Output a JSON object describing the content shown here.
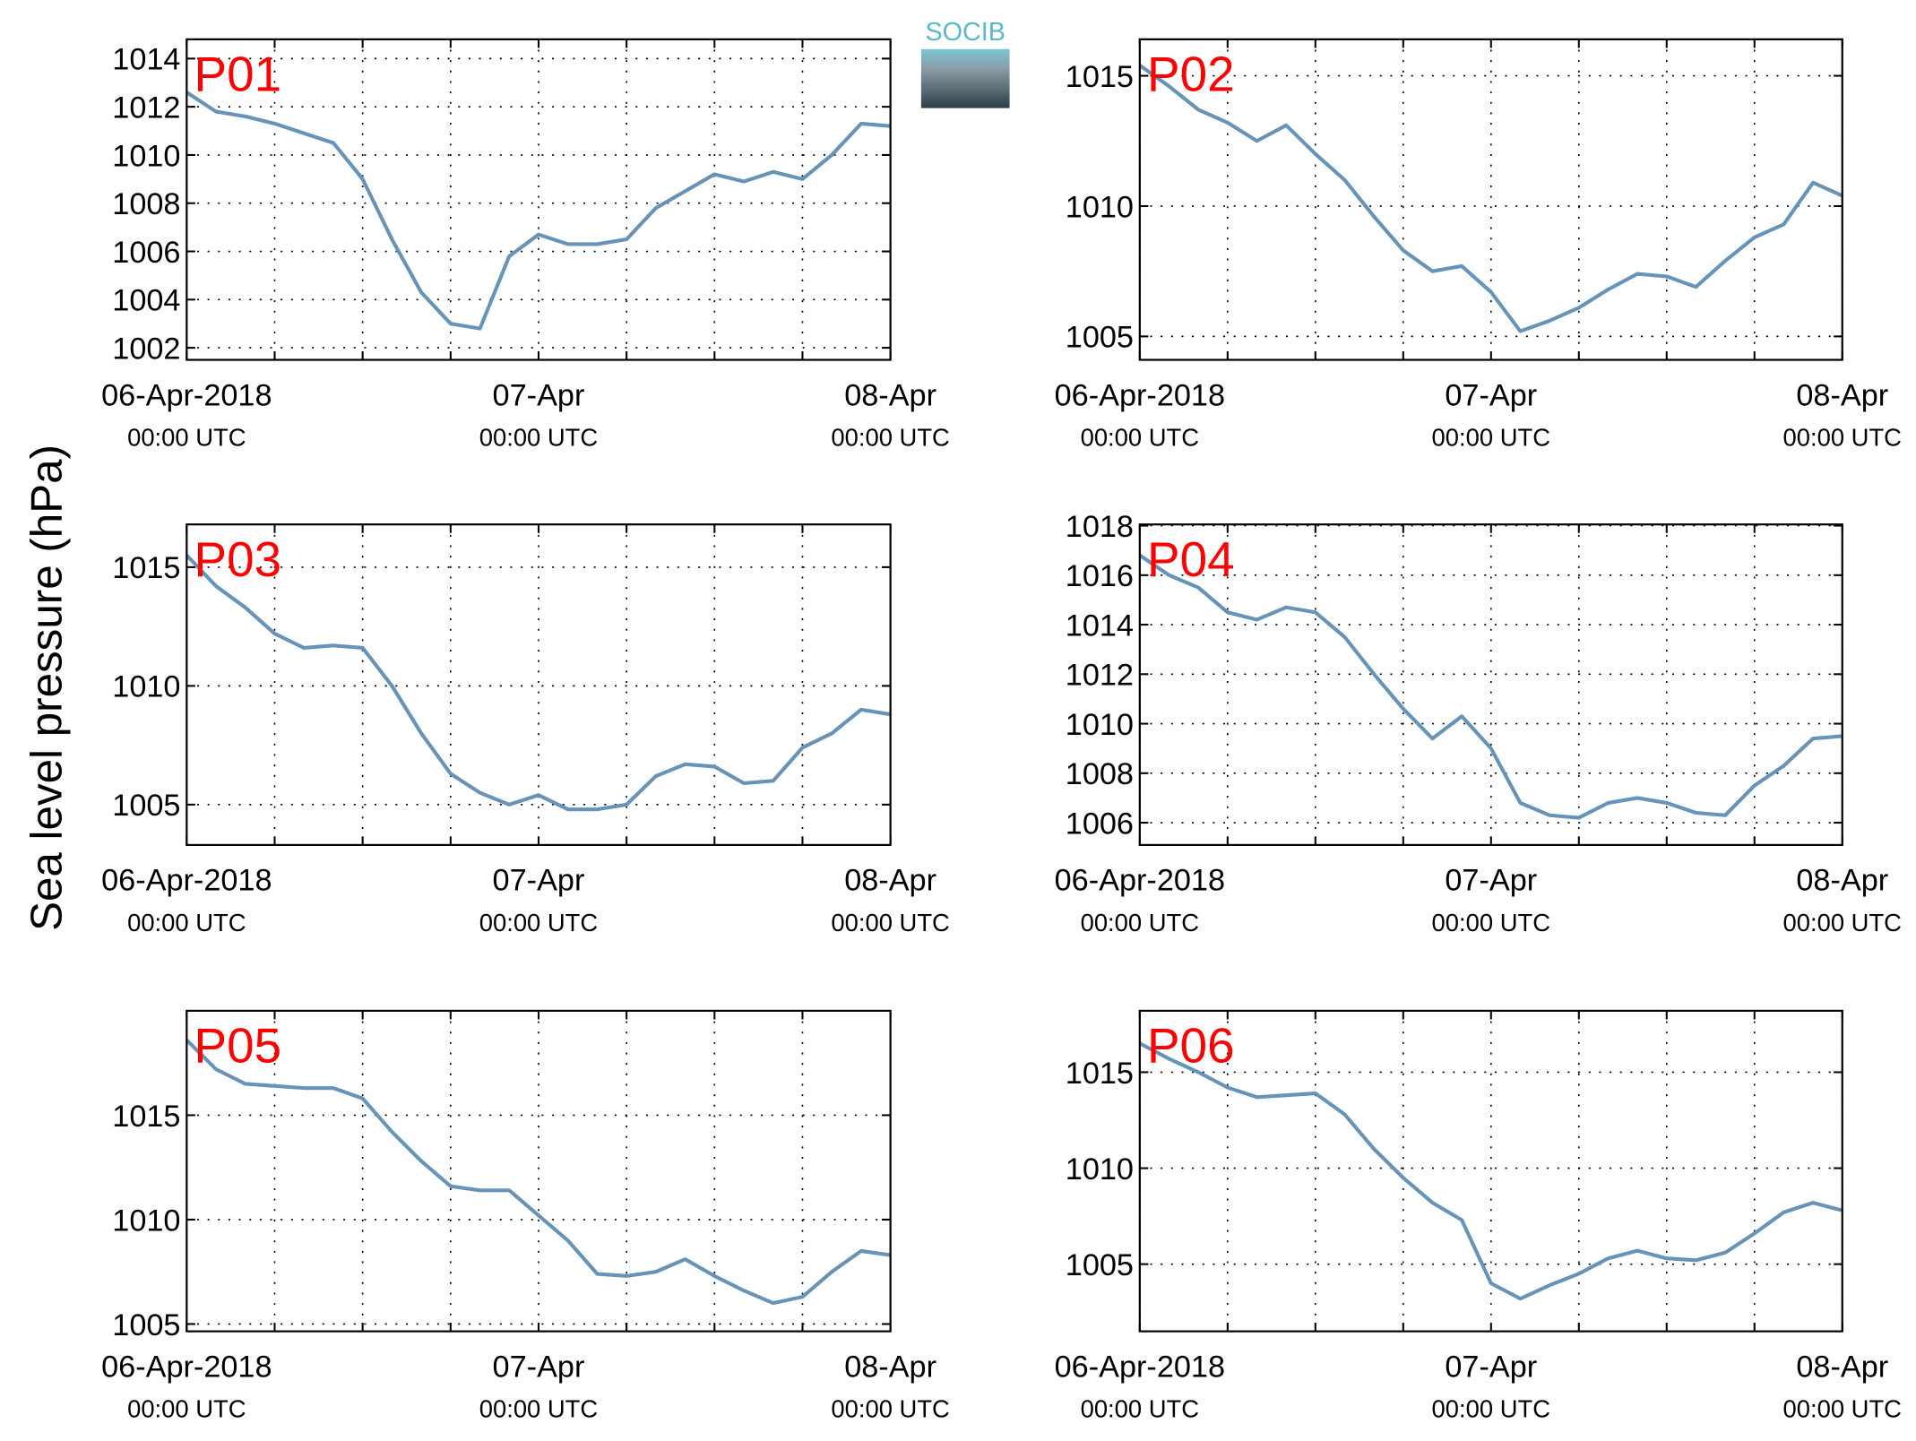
{
  "logo": "SOCIB",
  "ylabel": "Sea level pressure (hPa)",
  "chart_data": [
    {
      "type": "line",
      "label": "P01",
      "color": "#6693b8",
      "grid": true,
      "x": [
        0,
        2,
        4,
        6,
        8,
        10,
        12,
        14,
        16,
        18,
        20,
        22,
        24,
        26,
        28,
        30,
        32,
        34,
        36,
        38,
        40,
        42,
        44,
        46,
        48
      ],
      "values": [
        1012.6,
        1011.8,
        1011.6,
        1011.3,
        1010.9,
        1010.5,
        1009.0,
        1006.5,
        1004.3,
        1003.0,
        1002.8,
        1005.8,
        1006.7,
        1006.3,
        1006.3,
        1006.5,
        1007.8,
        1008.5,
        1009.2,
        1008.9,
        1009.3,
        1009.0,
        1010.0,
        1011.3,
        1011.2
      ],
      "xlim": [
        0,
        48
      ],
      "ylim": [
        1001.5,
        1014.8
      ],
      "yticks": [
        1002,
        1004,
        1006,
        1008,
        1010,
        1012,
        1014
      ],
      "xticks": [
        {
          "value": 0,
          "label": [
            "06-Apr-2018",
            "00:00 UTC"
          ]
        },
        {
          "value": 6,
          "label": null
        },
        {
          "value": 12,
          "label": null
        },
        {
          "value": 18,
          "label": null
        },
        {
          "value": 24,
          "label": [
            "07-Apr",
            "00:00 UTC"
          ]
        },
        {
          "value": 30,
          "label": null
        },
        {
          "value": 36,
          "label": null
        },
        {
          "value": 42,
          "label": null
        },
        {
          "value": 48,
          "label": [
            "08-Apr",
            "00:00 UTC"
          ]
        }
      ]
    },
    {
      "type": "line",
      "label": "P02",
      "color": "#6693b8",
      "grid": true,
      "x": [
        0,
        2,
        4,
        6,
        8,
        10,
        12,
        14,
        16,
        18,
        20,
        22,
        24,
        26,
        28,
        30,
        32,
        34,
        36,
        38,
        40,
        42,
        44,
        46,
        48
      ],
      "values": [
        1015.4,
        1014.6,
        1013.7,
        1013.2,
        1012.5,
        1013.1,
        1012.0,
        1011.0,
        1009.6,
        1008.3,
        1007.5,
        1007.7,
        1006.7,
        1005.2,
        1005.6,
        1006.1,
        1006.8,
        1007.4,
        1007.3,
        1006.9,
        1007.9,
        1008.8,
        1009.3,
        1010.9,
        1010.4
      ],
      "xlim": [
        0,
        48
      ],
      "ylim": [
        1004.1,
        1016.4
      ],
      "yticks": [
        1005,
        1010,
        1015
      ],
      "xticks": [
        {
          "value": 0,
          "label": [
            "06-Apr-2018",
            "00:00 UTC"
          ]
        },
        {
          "value": 6,
          "label": null
        },
        {
          "value": 12,
          "label": null
        },
        {
          "value": 18,
          "label": null
        },
        {
          "value": 24,
          "label": [
            "07-Apr",
            "00:00 UTC"
          ]
        },
        {
          "value": 30,
          "label": null
        },
        {
          "value": 36,
          "label": null
        },
        {
          "value": 42,
          "label": null
        },
        {
          "value": 48,
          "label": [
            "08-Apr",
            "00:00 UTC"
          ]
        }
      ]
    },
    {
      "type": "line",
      "label": "P03",
      "color": "#6693b8",
      "grid": true,
      "x": [
        0,
        2,
        4,
        6,
        8,
        10,
        12,
        14,
        16,
        18,
        20,
        22,
        24,
        26,
        28,
        30,
        32,
        34,
        36,
        38,
        40,
        42,
        44,
        46,
        48
      ],
      "values": [
        1015.5,
        1014.2,
        1013.3,
        1012.2,
        1011.6,
        1011.7,
        1011.6,
        1010.0,
        1008.0,
        1006.3,
        1005.5,
        1005.0,
        1005.4,
        1004.8,
        1004.8,
        1005.0,
        1006.2,
        1006.7,
        1006.6,
        1005.9,
        1006.0,
        1007.4,
        1008.0,
        1009.0,
        1008.8
      ],
      "xlim": [
        0,
        48
      ],
      "ylim": [
        1003.3,
        1016.8
      ],
      "yticks": [
        1005,
        1010,
        1015
      ],
      "xticks": [
        {
          "value": 0,
          "label": [
            "06-Apr-2018",
            "00:00 UTC"
          ]
        },
        {
          "value": 6,
          "label": null
        },
        {
          "value": 12,
          "label": null
        },
        {
          "value": 18,
          "label": null
        },
        {
          "value": 24,
          "label": [
            "07-Apr",
            "00:00 UTC"
          ]
        },
        {
          "value": 30,
          "label": null
        },
        {
          "value": 36,
          "label": null
        },
        {
          "value": 42,
          "label": null
        },
        {
          "value": 48,
          "label": [
            "08-Apr",
            "00:00 UTC"
          ]
        }
      ]
    },
    {
      "type": "line",
      "label": "P04",
      "color": "#6693b8",
      "grid": true,
      "x": [
        0,
        2,
        4,
        6,
        8,
        10,
        12,
        14,
        16,
        18,
        20,
        22,
        24,
        26,
        28,
        30,
        32,
        34,
        36,
        38,
        40,
        42,
        44,
        46,
        48
      ],
      "values": [
        1016.8,
        1016.0,
        1015.5,
        1014.5,
        1014.2,
        1014.7,
        1014.5,
        1013.5,
        1012.0,
        1010.6,
        1009.4,
        1010.3,
        1009.0,
        1006.8,
        1006.3,
        1006.2,
        1006.8,
        1007.0,
        1006.8,
        1006.4,
        1006.3,
        1007.5,
        1008.3,
        1009.4,
        1009.5
      ],
      "xlim": [
        0,
        48
      ],
      "ylim": [
        1005.1,
        1018.05
      ],
      "yticks": [
        1006,
        1008,
        1010,
        1012,
        1014,
        1016,
        1018
      ],
      "xticks": [
        {
          "value": 0,
          "label": [
            "06-Apr-2018",
            "00:00 UTC"
          ]
        },
        {
          "value": 6,
          "label": null
        },
        {
          "value": 12,
          "label": null
        },
        {
          "value": 18,
          "label": null
        },
        {
          "value": 24,
          "label": [
            "07-Apr",
            "00:00 UTC"
          ]
        },
        {
          "value": 30,
          "label": null
        },
        {
          "value": 36,
          "label": null
        },
        {
          "value": 42,
          "label": null
        },
        {
          "value": 48,
          "label": [
            "08-Apr",
            "00:00 UTC"
          ]
        }
      ]
    },
    {
      "type": "line",
      "label": "P05",
      "color": "#6693b8",
      "grid": true,
      "x": [
        0,
        2,
        4,
        6,
        8,
        10,
        12,
        14,
        16,
        18,
        20,
        22,
        24,
        26,
        28,
        30,
        32,
        34,
        36,
        38,
        40,
        42,
        44,
        46,
        48
      ],
      "values": [
        1018.6,
        1017.2,
        1016.5,
        1016.4,
        1016.3,
        1016.3,
        1015.8,
        1014.2,
        1012.8,
        1011.6,
        1011.4,
        1011.4,
        1010.2,
        1009.0,
        1007.4,
        1007.3,
        1007.5,
        1008.1,
        1007.3,
        1006.6,
        1006.0,
        1006.3,
        1007.5,
        1008.5,
        1008.3
      ],
      "xlim": [
        0,
        48
      ],
      "ylim": [
        1004.65,
        1020.0
      ],
      "yticks": [
        1005,
        1010,
        1015
      ],
      "xticks": [
        {
          "value": 0,
          "label": [
            "06-Apr-2018",
            "00:00 UTC"
          ]
        },
        {
          "value": 6,
          "label": null
        },
        {
          "value": 12,
          "label": null
        },
        {
          "value": 18,
          "label": null
        },
        {
          "value": 24,
          "label": [
            "07-Apr",
            "00:00 UTC"
          ]
        },
        {
          "value": 30,
          "label": null
        },
        {
          "value": 36,
          "label": null
        },
        {
          "value": 42,
          "label": null
        },
        {
          "value": 48,
          "label": [
            "08-Apr",
            "00:00 UTC"
          ]
        }
      ]
    },
    {
      "type": "line",
      "label": "P06",
      "color": "#6693b8",
      "grid": true,
      "x": [
        0,
        2,
        4,
        6,
        8,
        10,
        12,
        14,
        16,
        18,
        20,
        22,
        24,
        26,
        28,
        30,
        32,
        34,
        36,
        38,
        40,
        42,
        44,
        46,
        48
      ],
      "values": [
        1016.5,
        1015.7,
        1015.0,
        1014.2,
        1013.7,
        1013.8,
        1013.9,
        1012.8,
        1011.0,
        1009.5,
        1008.2,
        1007.3,
        1004.0,
        1003.2,
        1003.9,
        1004.5,
        1005.3,
        1005.7,
        1005.3,
        1005.2,
        1005.6,
        1006.6,
        1007.7,
        1008.2,
        1007.8
      ],
      "xlim": [
        0,
        48
      ],
      "ylim": [
        1001.5,
        1018.2
      ],
      "yticks": [
        1005,
        1010,
        1015
      ],
      "xticks": [
        {
          "value": 0,
          "label": [
            "06-Apr-2018",
            "00:00 UTC"
          ]
        },
        {
          "value": 6,
          "label": null
        },
        {
          "value": 12,
          "label": null
        },
        {
          "value": 18,
          "label": null
        },
        {
          "value": 24,
          "label": [
            "07-Apr",
            "00:00 UTC"
          ]
        },
        {
          "value": 30,
          "label": null
        },
        {
          "value": 36,
          "label": null
        },
        {
          "value": 42,
          "label": null
        },
        {
          "value": 48,
          "label": [
            "08-Apr",
            "00:00 UTC"
          ]
        }
      ]
    }
  ]
}
